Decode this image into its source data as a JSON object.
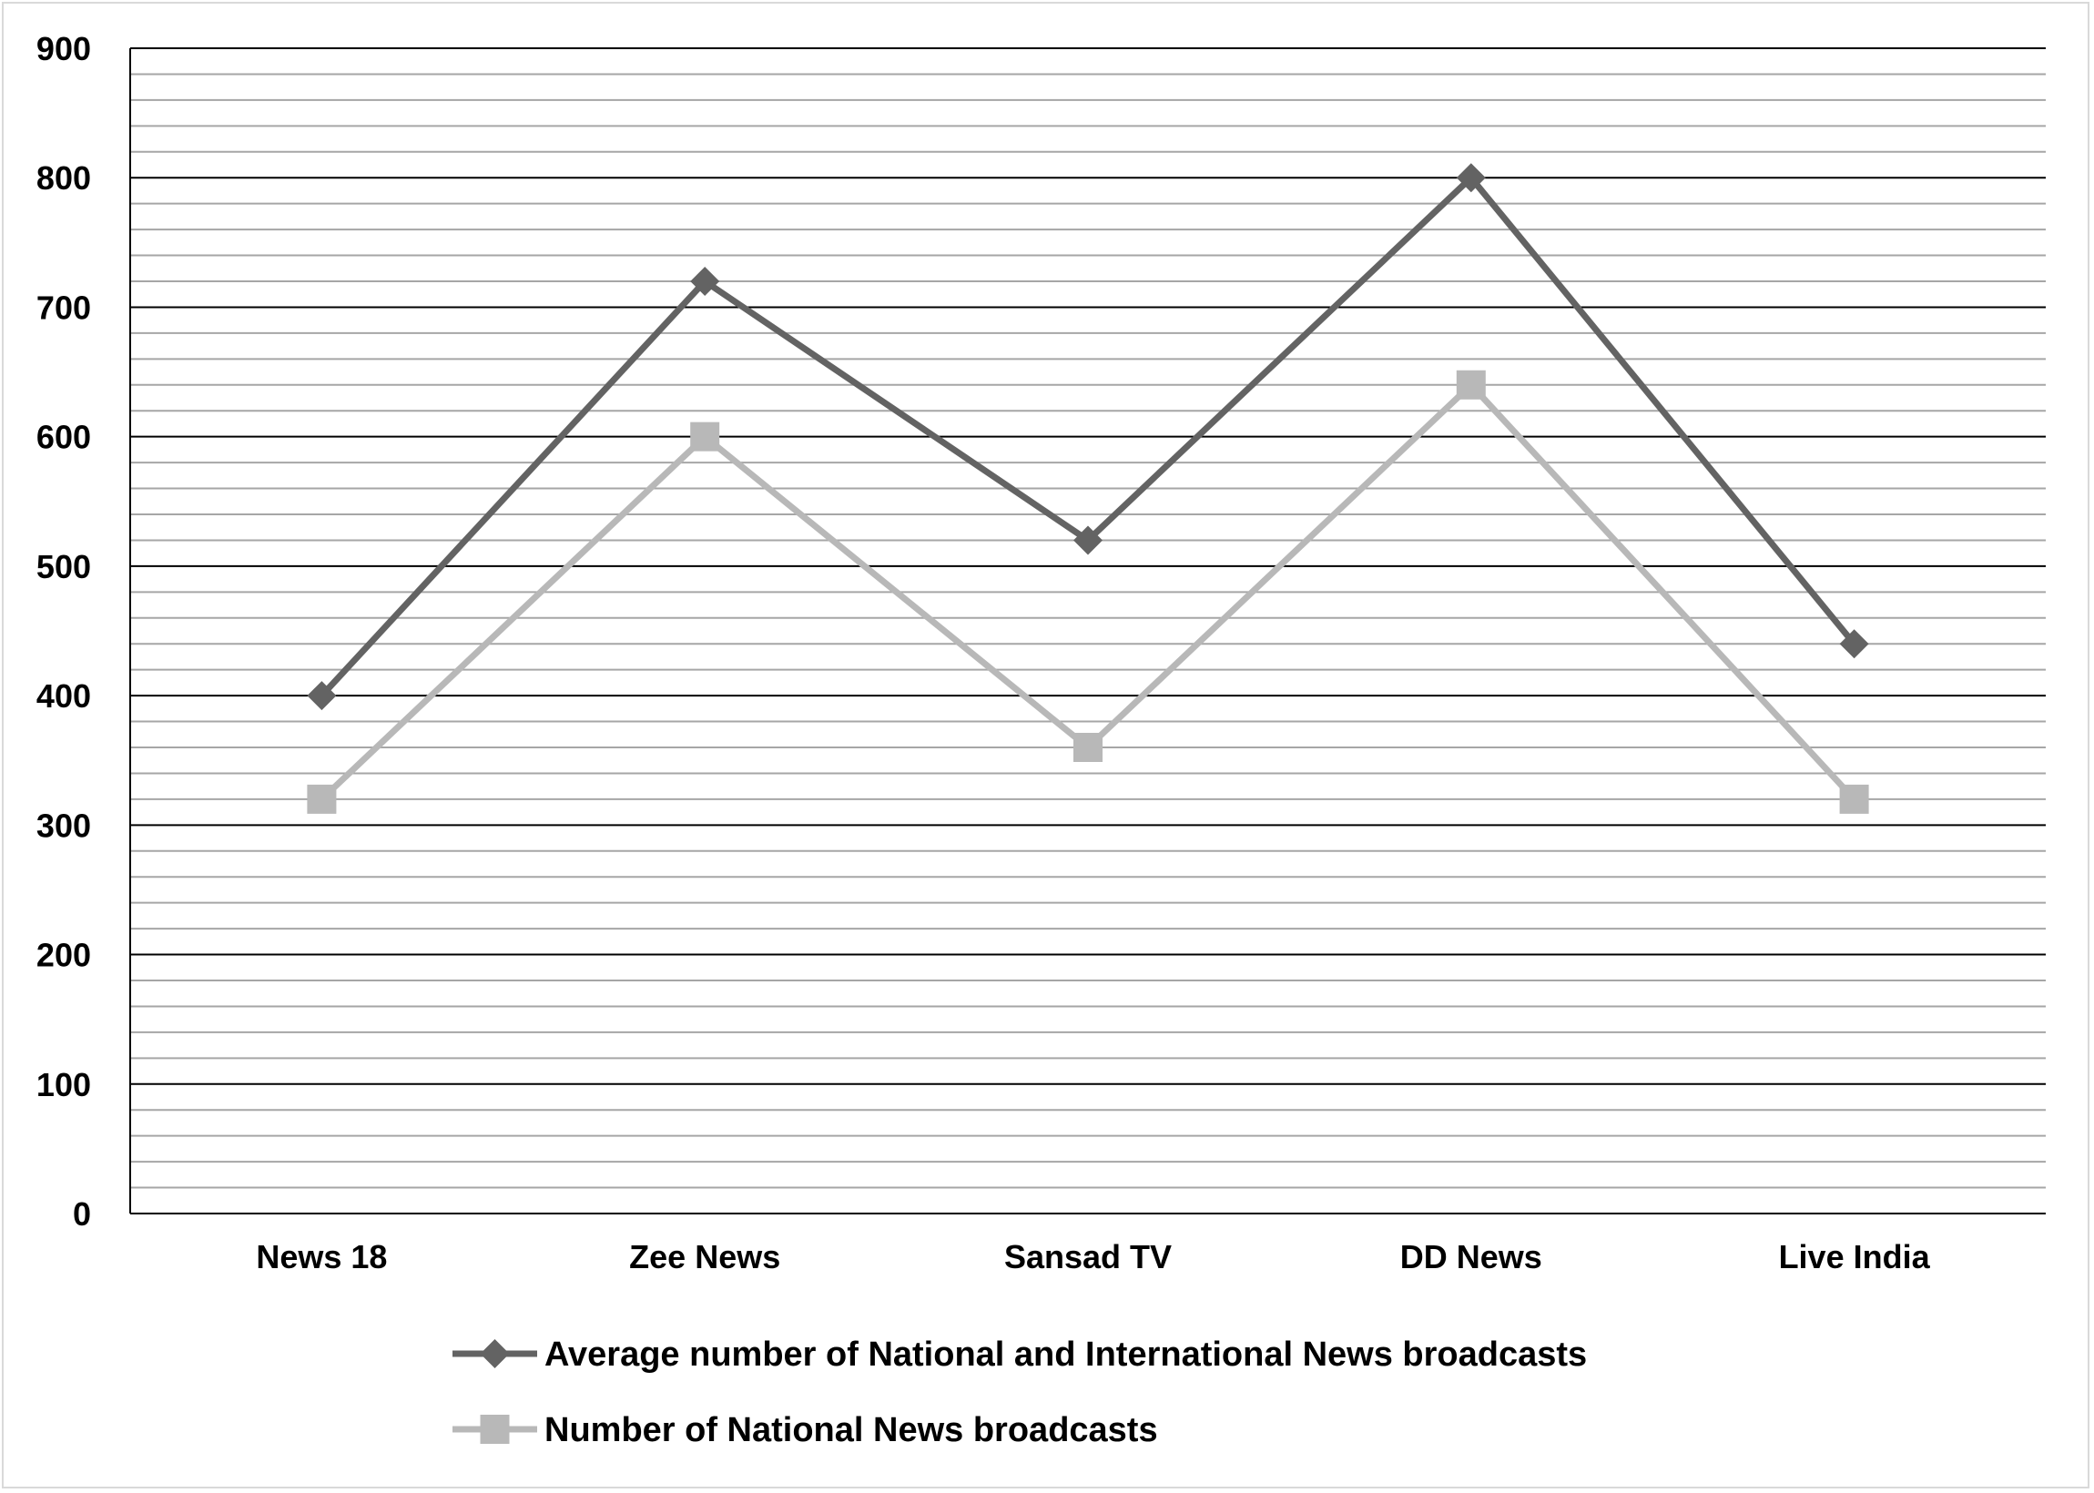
{
  "chart_data": {
    "type": "line",
    "title": "",
    "xlabel": "",
    "ylabel": "",
    "categories": [
      "News 18",
      "Zee News",
      "Sansad TV",
      "DD News",
      "Live India"
    ],
    "ylim": [
      0,
      900
    ],
    "y_major_step": 100,
    "y_minor_step": 20,
    "grid": true,
    "legend_position": "bottom",
    "series": [
      {
        "name": "Average number of National and International News broadcasts",
        "values": [
          400,
          720,
          520,
          800,
          440
        ],
        "color": "#636363",
        "marker": "diamond"
      },
      {
        "name": "Number of National News broadcasts",
        "values": [
          320,
          600,
          360,
          640,
          320
        ],
        "color": "#b8b8b8",
        "marker": "square"
      }
    ]
  }
}
